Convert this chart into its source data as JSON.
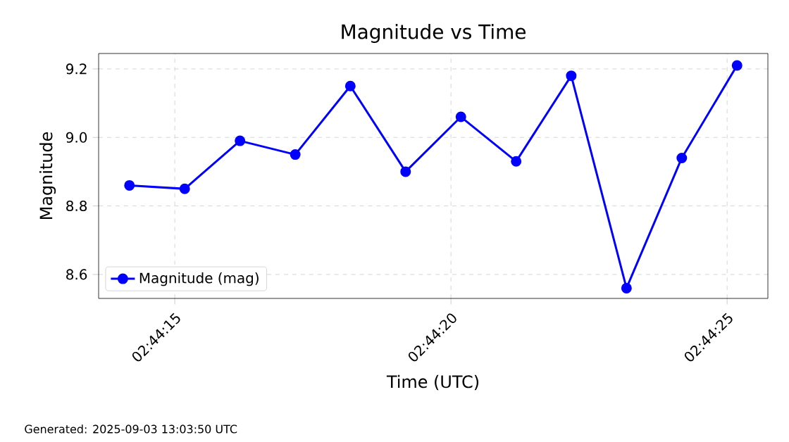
{
  "chart_data": {
    "type": "line",
    "title": "Magnitude vs Time",
    "xlabel": "Time (UTC)",
    "ylabel": "Magnitude",
    "x": [
      2.737272,
      2.73755,
      2.737828,
      2.738106,
      2.738383,
      2.738661,
      2.738939,
      2.739217,
      2.739494,
      2.739772,
      2.74005,
      2.740328
    ],
    "series": [
      {
        "name": "Magnitude (mag)",
        "color": "#0000ff",
        "values": [
          8.86,
          8.85,
          8.99,
          8.95,
          9.15,
          8.9,
          9.06,
          8.93,
          9.18,
          8.56,
          8.94,
          9.21
        ]
      }
    ],
    "xlim": [
      2.737117,
      2.740483
    ],
    "ylim": [
      8.53,
      9.245
    ],
    "xticks": [
      {
        "value": 2.7375,
        "label": "02:44:15"
      },
      {
        "value": 2.738889,
        "label": "02:44:20"
      },
      {
        "value": 2.740278,
        "label": "02:44:25"
      }
    ],
    "yticks": [
      8.6,
      8.8,
      {
        "value": 9.0,
        "label": "9.0"
      },
      9.2
    ],
    "grid": true,
    "legend": "bottom left",
    "marker": "circle",
    "line_style": "solid",
    "annotations": [
      "Generated: 2025-09-03 13:03:50 UTC"
    ]
  }
}
